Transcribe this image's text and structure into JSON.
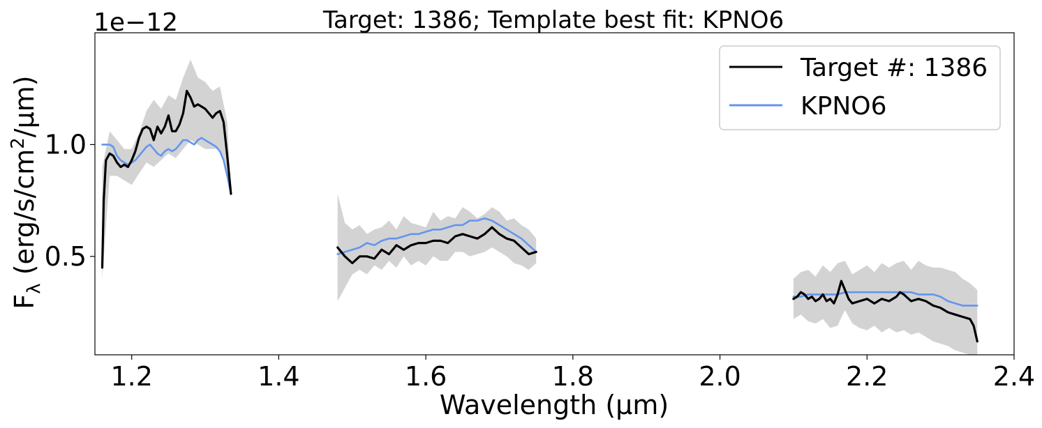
{
  "chart_data": {
    "type": "line",
    "title": "Target: 1386; Template best fit: KPNO6",
    "xlabel": "Wavelength (μm)",
    "ylabel_main": "F",
    "ylabel_sub": "λ",
    "ylabel_rest": " (erg/s/cm",
    "ylabel_sup": "2",
    "ylabel_end": "/μm)",
    "offset_text": "1e−12",
    "xlim": [
      1.15,
      2.4
    ],
    "ylim": [
      0.06,
      1.5
    ],
    "y_scale_factor": 1e-12,
    "xticks": [
      1.2,
      1.4,
      1.6,
      1.8,
      2.0,
      2.2,
      2.4
    ],
    "xtick_labels": [
      "1.2",
      "1.4",
      "1.6",
      "1.8",
      "2.0",
      "2.2",
      "2.4"
    ],
    "yticks": [
      0.5,
      1.0
    ],
    "ytick_labels": [
      "0.5",
      "1.0"
    ],
    "grid": false,
    "legend_position": "top-right",
    "series": [
      {
        "name": "Target #: 1386",
        "color": "#000000",
        "segments": [
          {
            "x": [
              1.16,
              1.162,
              1.165,
              1.17,
              1.175,
              1.18,
              1.185,
              1.19,
              1.195,
              1.2,
              1.205,
              1.21,
              1.215,
              1.22,
              1.225,
              1.23,
              1.235,
              1.24,
              1.245,
              1.25,
              1.255,
              1.26,
              1.265,
              1.27,
              1.275,
              1.28,
              1.285,
              1.29,
              1.295,
              1.3,
              1.305,
              1.31,
              1.315,
              1.32,
              1.325,
              1.33,
              1.335
            ],
            "y": [
              0.45,
              0.75,
              0.93,
              0.96,
              0.95,
              0.92,
              0.9,
              0.91,
              0.9,
              0.93,
              0.97,
              1.03,
              1.07,
              1.08,
              1.07,
              1.02,
              1.08,
              1.05,
              1.08,
              1.13,
              1.06,
              1.06,
              1.09,
              1.14,
              1.24,
              1.21,
              1.17,
              1.18,
              1.17,
              1.16,
              1.14,
              1.12,
              1.14,
              1.15,
              1.1,
              0.95,
              0.78
            ]
          },
          {
            "x": [
              1.48,
              1.49,
              1.5,
              1.51,
              1.52,
              1.53,
              1.54,
              1.55,
              1.56,
              1.57,
              1.58,
              1.59,
              1.6,
              1.61,
              1.62,
              1.63,
              1.64,
              1.65,
              1.66,
              1.67,
              1.68,
              1.69,
              1.7,
              1.71,
              1.72,
              1.73,
              1.74,
              1.75
            ],
            "y": [
              0.54,
              0.5,
              0.47,
              0.5,
              0.5,
              0.49,
              0.53,
              0.51,
              0.55,
              0.53,
              0.55,
              0.56,
              0.56,
              0.57,
              0.57,
              0.56,
              0.59,
              0.6,
              0.59,
              0.58,
              0.6,
              0.63,
              0.6,
              0.58,
              0.57,
              0.54,
              0.51,
              0.52
            ]
          },
          {
            "x": [
              2.1,
              2.105,
              2.11,
              2.115,
              2.12,
              2.125,
              2.13,
              2.135,
              2.14,
              2.145,
              2.15,
              2.155,
              2.16,
              2.165,
              2.17,
              2.175,
              2.18,
              2.19,
              2.2,
              2.21,
              2.22,
              2.23,
              2.24,
              2.245,
              2.25,
              2.26,
              2.27,
              2.28,
              2.29,
              2.3,
              2.31,
              2.32,
              2.33,
              2.34,
              2.345,
              2.35
            ],
            "y": [
              0.31,
              0.32,
              0.34,
              0.33,
              0.31,
              0.32,
              0.3,
              0.31,
              0.33,
              0.3,
              0.31,
              0.29,
              0.33,
              0.39,
              0.35,
              0.31,
              0.29,
              0.3,
              0.31,
              0.29,
              0.31,
              0.3,
              0.32,
              0.34,
              0.33,
              0.3,
              0.31,
              0.3,
              0.28,
              0.27,
              0.25,
              0.24,
              0.23,
              0.22,
              0.19,
              0.12
            ]
          }
        ]
      },
      {
        "name": "KPNO6",
        "color": "#6495ed",
        "segments": [
          {
            "x": [
              1.16,
              1.165,
              1.17,
              1.175,
              1.18,
              1.185,
              1.19,
              1.195,
              1.2,
              1.205,
              1.21,
              1.215,
              1.22,
              1.225,
              1.23,
              1.235,
              1.24,
              1.245,
              1.25,
              1.255,
              1.26,
              1.265,
              1.27,
              1.275,
              1.28,
              1.285,
              1.29,
              1.295,
              1.3,
              1.305,
              1.31,
              1.315,
              1.32,
              1.325,
              1.33,
              1.335
            ],
            "y": [
              1.0,
              1.0,
              1.0,
              0.99,
              0.95,
              0.93,
              0.92,
              0.91,
              0.92,
              0.93,
              0.95,
              0.97,
              0.99,
              1.0,
              0.98,
              0.96,
              0.95,
              0.97,
              0.98,
              0.97,
              0.98,
              1.0,
              1.02,
              1.02,
              1.01,
              1.0,
              1.02,
              1.03,
              1.02,
              1.01,
              1.0,
              0.99,
              0.97,
              0.93,
              0.86,
              0.78
            ]
          },
          {
            "x": [
              1.48,
              1.49,
              1.5,
              1.51,
              1.52,
              1.53,
              1.54,
              1.55,
              1.56,
              1.57,
              1.58,
              1.59,
              1.6,
              1.61,
              1.62,
              1.63,
              1.64,
              1.65,
              1.66,
              1.67,
              1.68,
              1.69,
              1.7,
              1.71,
              1.72,
              1.73,
              1.74,
              1.75
            ],
            "y": [
              0.51,
              0.52,
              0.53,
              0.54,
              0.56,
              0.55,
              0.57,
              0.58,
              0.58,
              0.59,
              0.6,
              0.6,
              0.61,
              0.62,
              0.62,
              0.63,
              0.64,
              0.64,
              0.66,
              0.66,
              0.67,
              0.66,
              0.64,
              0.62,
              0.6,
              0.58,
              0.55,
              0.52
            ]
          },
          {
            "x": [
              2.1,
              2.11,
              2.12,
              2.13,
              2.14,
              2.15,
              2.16,
              2.17,
              2.18,
              2.19,
              2.2,
              2.21,
              2.22,
              2.23,
              2.24,
              2.25,
              2.26,
              2.27,
              2.28,
              2.29,
              2.3,
              2.31,
              2.32,
              2.33,
              2.34,
              2.35
            ],
            "y": [
              0.32,
              0.32,
              0.33,
              0.33,
              0.33,
              0.33,
              0.33,
              0.34,
              0.34,
              0.34,
              0.34,
              0.34,
              0.34,
              0.34,
              0.34,
              0.34,
              0.34,
              0.33,
              0.33,
              0.33,
              0.32,
              0.3,
              0.29,
              0.28,
              0.28,
              0.28
            ]
          }
        ]
      }
    ],
    "uncertainty_band": {
      "color": "#d3d3d3",
      "segments": [
        {
          "x": [
            1.16,
            1.17,
            1.18,
            1.19,
            1.2,
            1.21,
            1.22,
            1.23,
            1.24,
            1.25,
            1.26,
            1.27,
            1.28,
            1.29,
            1.3,
            1.31,
            1.32,
            1.33,
            1.335
          ],
          "upper": [
            0.9,
            1.06,
            1.02,
            0.98,
            0.98,
            1.05,
            1.15,
            1.2,
            1.16,
            1.22,
            1.2,
            1.3,
            1.38,
            1.3,
            1.28,
            1.24,
            1.26,
            1.1,
            0.8
          ],
          "lower": [
            0.4,
            0.86,
            0.86,
            0.84,
            0.82,
            0.87,
            0.92,
            0.9,
            0.93,
            0.96,
            0.94,
            0.98,
            1.02,
            1.0,
            0.98,
            0.98,
            0.98,
            0.88,
            0.77
          ]
        },
        {
          "x": [
            1.48,
            1.49,
            1.5,
            1.51,
            1.52,
            1.53,
            1.54,
            1.55,
            1.56,
            1.57,
            1.58,
            1.59,
            1.6,
            1.61,
            1.62,
            1.63,
            1.64,
            1.65,
            1.66,
            1.67,
            1.68,
            1.69,
            1.7,
            1.71,
            1.72,
            1.73,
            1.74,
            1.75
          ],
          "upper": [
            0.78,
            0.65,
            0.62,
            0.64,
            0.6,
            0.62,
            0.63,
            0.66,
            0.62,
            0.68,
            0.65,
            0.64,
            0.63,
            0.7,
            0.66,
            0.68,
            0.67,
            0.72,
            0.7,
            0.67,
            0.69,
            0.72,
            0.7,
            0.66,
            0.67,
            0.64,
            0.62,
            0.58
          ],
          "lower": [
            0.3,
            0.36,
            0.42,
            0.44,
            0.42,
            0.46,
            0.44,
            0.48,
            0.45,
            0.5,
            0.46,
            0.48,
            0.46,
            0.5,
            0.48,
            0.48,
            0.52,
            0.52,
            0.5,
            0.51,
            0.52,
            0.54,
            0.52,
            0.5,
            0.47,
            0.46,
            0.44,
            0.47
          ]
        },
        {
          "x": [
            2.1,
            2.11,
            2.12,
            2.13,
            2.14,
            2.15,
            2.16,
            2.17,
            2.18,
            2.19,
            2.2,
            2.21,
            2.22,
            2.23,
            2.24,
            2.25,
            2.26,
            2.27,
            2.28,
            2.29,
            2.3,
            2.31,
            2.32,
            2.33,
            2.34,
            2.35
          ],
          "upper": [
            0.4,
            0.43,
            0.44,
            0.41,
            0.46,
            0.43,
            0.47,
            0.48,
            0.42,
            0.44,
            0.46,
            0.43,
            0.47,
            0.45,
            0.47,
            0.48,
            0.44,
            0.48,
            0.46,
            0.45,
            0.45,
            0.44,
            0.43,
            0.4,
            0.38,
            0.35
          ],
          "lower": [
            0.22,
            0.24,
            0.21,
            0.2,
            0.22,
            0.18,
            0.19,
            0.26,
            0.2,
            0.18,
            0.17,
            0.19,
            0.16,
            0.18,
            0.16,
            0.17,
            0.15,
            0.16,
            0.14,
            0.12,
            0.11,
            0.1,
            0.08,
            0.07,
            0.06,
            0.06
          ]
        }
      ]
    }
  }
}
